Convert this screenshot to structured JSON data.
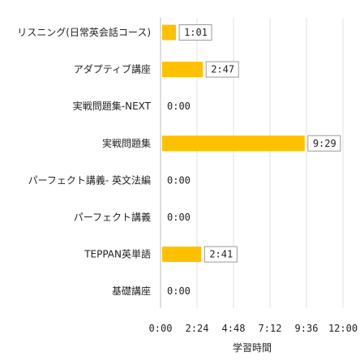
{
  "chart_data": {
    "type": "bar",
    "orientation": "horizontal",
    "categories": [
      "リスニング(日常英会話コース)",
      "アダプティブ講座",
      "実戦問題集-NEXT",
      "実戦問題集",
      "パーフェクト講義- 英文法編",
      "パーフェクト講義",
      "TEPPAN英単語",
      "基礎講座"
    ],
    "values_minutes": [
      61,
      167,
      0,
      569,
      0,
      0,
      161,
      0
    ],
    "value_labels": [
      "1:01",
      "2:47",
      "0:00",
      "9:29",
      "0:00",
      "0:00",
      "2:41",
      "0:00"
    ],
    "x_ticks": [
      "0:00",
      "2:24",
      "4:48",
      "7:12",
      "9:36",
      "12:00"
    ],
    "xlim_minutes": [
      0,
      720
    ],
    "xlabel": "学習時間",
    "bar_color": "#ffc000",
    "bar_edge_color": "#9a9a9a",
    "grid": true,
    "legend": "none"
  }
}
